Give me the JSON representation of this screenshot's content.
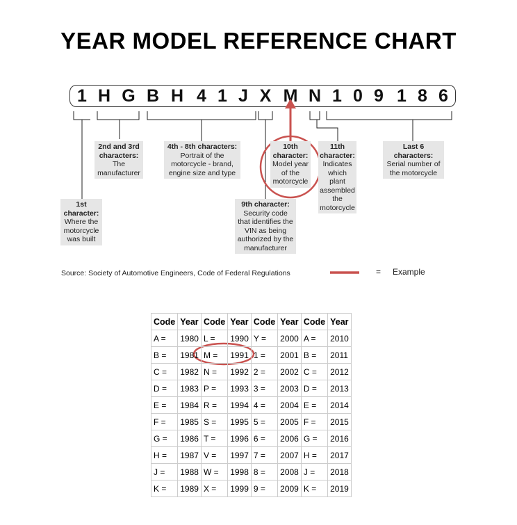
{
  "title": "YEAR MODEL REFERENCE CHART",
  "vin": [
    "1",
    "H",
    "G",
    "B",
    "H",
    "4",
    "1",
    "J",
    "X",
    "M",
    "N",
    "1",
    "0",
    "9",
    "1",
    "8",
    "6"
  ],
  "labels": {
    "c1": {
      "head": "1st character:",
      "body": "Where the motorcycle was built"
    },
    "c23": {
      "head": "2nd and 3rd characters:",
      "body": "The manufacturer"
    },
    "c48": {
      "head": "4th - 8th characters:",
      "body": "Portrait of the motorcycle - brand, engine size and type"
    },
    "c9": {
      "head": "9th character:",
      "body": "Security code that identifies the VIN as being authorized by the manufacturer"
    },
    "c10": {
      "head": "10th character:",
      "body": "Model year of the motorcycle"
    },
    "c11": {
      "head": "11th character:",
      "body": "Indicates which plant assembled the motorcycle"
    },
    "last6": {
      "head": "Last 6 characters:",
      "body": "Serial number of the motorcycle"
    }
  },
  "source": "Source:  Society of Automotive Engineers, Code of Federal Regulations",
  "legend": {
    "equals": "=",
    "text": "Example",
    "color": "#c9524f"
  },
  "table": {
    "headers": [
      "Code",
      "Year",
      "Code",
      "Year",
      "Code",
      "Year",
      "Code",
      "Year"
    ],
    "rows": [
      [
        "A =",
        "1980",
        "L =",
        "1990",
        "Y =",
        "2000",
        "A =",
        "2010"
      ],
      [
        "B =",
        "1981",
        "M =",
        "1991",
        "1 =",
        "2001",
        "B =",
        "2011"
      ],
      [
        "C =",
        "1982",
        "N =",
        "1992",
        "2 =",
        "2002",
        "C =",
        "2012"
      ],
      [
        "D =",
        "1983",
        "P =",
        "1993",
        "3 =",
        "2003",
        "D =",
        "2013"
      ],
      [
        "E =",
        "1984",
        "R =",
        "1994",
        "4 =",
        "2004",
        "E =",
        "2014"
      ],
      [
        "F =",
        "1985",
        "S =",
        "1995",
        "5 =",
        "2005",
        "F =",
        "2015"
      ],
      [
        "G =",
        "1986",
        "T =",
        "1996",
        "6 =",
        "2006",
        "G =",
        "2016"
      ],
      [
        "H =",
        "1987",
        "V =",
        "1997",
        "7 =",
        "2007",
        "H =",
        "2017"
      ],
      [
        "J =",
        "1988",
        "W =",
        "1998",
        "8 =",
        "2008",
        "J =",
        "2018"
      ],
      [
        "K =",
        "1989",
        "X =",
        "1999",
        "9 =",
        "2009",
        "K =",
        "2019"
      ]
    ]
  }
}
